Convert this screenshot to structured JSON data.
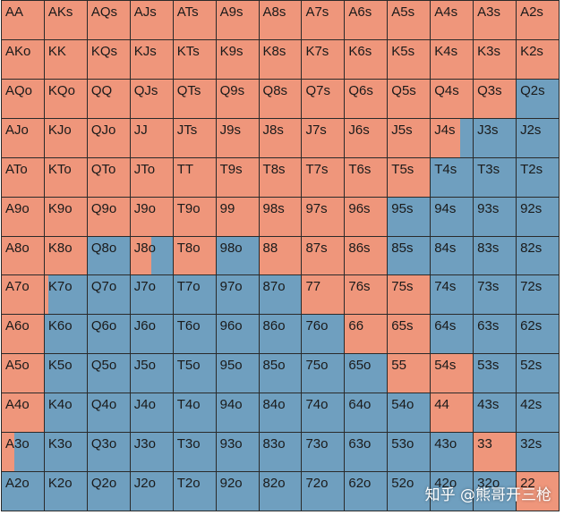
{
  "colors": {
    "orange": "#ef967b",
    "blue": "#6f9fbf"
  },
  "rows": [
    [
      "AA",
      "AKs",
      "AQs",
      "AJs",
      "ATs",
      "A9s",
      "A8s",
      "A7s",
      "A6s",
      "A5s",
      "A4s",
      "A3s",
      "A2s"
    ],
    [
      "AKo",
      "KK",
      "KQs",
      "KJs",
      "KTs",
      "K9s",
      "K8s",
      "K7s",
      "K6s",
      "K5s",
      "K4s",
      "K3s",
      "K2s"
    ],
    [
      "AQo",
      "KQo",
      "QQ",
      "QJs",
      "QTs",
      "Q9s",
      "Q8s",
      "Q7s",
      "Q6s",
      "Q5s",
      "Q4s",
      "Q3s",
      "Q2s"
    ],
    [
      "AJo",
      "KJo",
      "QJo",
      "JJ",
      "JTs",
      "J9s",
      "J8s",
      "J7s",
      "J6s",
      "J5s",
      "J4s",
      "J3s",
      "J2s"
    ],
    [
      "ATo",
      "KTo",
      "QTo",
      "JTo",
      "TT",
      "T9s",
      "T8s",
      "T7s",
      "T6s",
      "T5s",
      "T4s",
      "T3s",
      "T2s"
    ],
    [
      "A9o",
      "K9o",
      "Q9o",
      "J9o",
      "T9o",
      "99",
      "98s",
      "97s",
      "96s",
      "95s",
      "94s",
      "93s",
      "92s"
    ],
    [
      "A8o",
      "K8o",
      "Q8o",
      "J8o",
      "T8o",
      "98o",
      "88",
      "87s",
      "86s",
      "85s",
      "84s",
      "83s",
      "82s"
    ],
    [
      "A7o",
      "K7o",
      "Q7o",
      "J7o",
      "T7o",
      "97o",
      "87o",
      "77",
      "76s",
      "75s",
      "74s",
      "73s",
      "72s"
    ],
    [
      "A6o",
      "K6o",
      "Q6o",
      "J6o",
      "T6o",
      "96o",
      "86o",
      "76o",
      "66",
      "65s",
      "64s",
      "63s",
      "62s"
    ],
    [
      "A5o",
      "K5o",
      "Q5o",
      "J5o",
      "T5o",
      "95o",
      "85o",
      "75o",
      "65o",
      "55",
      "54s",
      "53s",
      "52s"
    ],
    [
      "A4o",
      "K4o",
      "Q4o",
      "J4o",
      "T4o",
      "94o",
      "84o",
      "74o",
      "64o",
      "54o",
      "44",
      "43s",
      "42s"
    ],
    [
      "A3o",
      "K3o",
      "Q3o",
      "J3o",
      "T3o",
      "93o",
      "83o",
      "73o",
      "63o",
      "53o",
      "43o",
      "33",
      "32s"
    ],
    [
      "A2o",
      "K2o",
      "Q2o",
      "J2o",
      "T2o",
      "92o",
      "82o",
      "72o",
      "62o",
      "52o",
      "42o",
      "32o",
      "22"
    ]
  ],
  "orange_fraction": [
    [
      1,
      1,
      1,
      1,
      1,
      1,
      1,
      1,
      1,
      1,
      1,
      1,
      1
    ],
    [
      1,
      1,
      1,
      1,
      1,
      1,
      1,
      1,
      1,
      1,
      1,
      1,
      1
    ],
    [
      1,
      1,
      1,
      1,
      1,
      1,
      1,
      1,
      1,
      1,
      1,
      1,
      0
    ],
    [
      1,
      1,
      1,
      1,
      1,
      1,
      1,
      1,
      1,
      1,
      0.7,
      0,
      0
    ],
    [
      1,
      1,
      1,
      1,
      1,
      1,
      1,
      1,
      1,
      1,
      0,
      0,
      0
    ],
    [
      1,
      1,
      1,
      1,
      1,
      1,
      1,
      1,
      1,
      0,
      0,
      0,
      0
    ],
    [
      1,
      1,
      0,
      0.5,
      1,
      0,
      1,
      1,
      1,
      0,
      0,
      0,
      0
    ],
    [
      1,
      0.08,
      0,
      0,
      0,
      0,
      0,
      1,
      1,
      1,
      0,
      0,
      0
    ],
    [
      1,
      0,
      0,
      0,
      0,
      0,
      0,
      0,
      1,
      1,
      0,
      0,
      0
    ],
    [
      1,
      0,
      0,
      0,
      0,
      0,
      0,
      0,
      0,
      1,
      1,
      0,
      0
    ],
    [
      1,
      0,
      0,
      0,
      0,
      0,
      0,
      0,
      0,
      0,
      1,
      0,
      0
    ],
    [
      0.3,
      0,
      0,
      0,
      0,
      0,
      0,
      0,
      0,
      0,
      0,
      1,
      0
    ],
    [
      0,
      0,
      0,
      0,
      0,
      0,
      0,
      0,
      0,
      0,
      0,
      0,
      1
    ]
  ],
  "watermark": {
    "text": "知乎 @熊哥开三枪"
  }
}
